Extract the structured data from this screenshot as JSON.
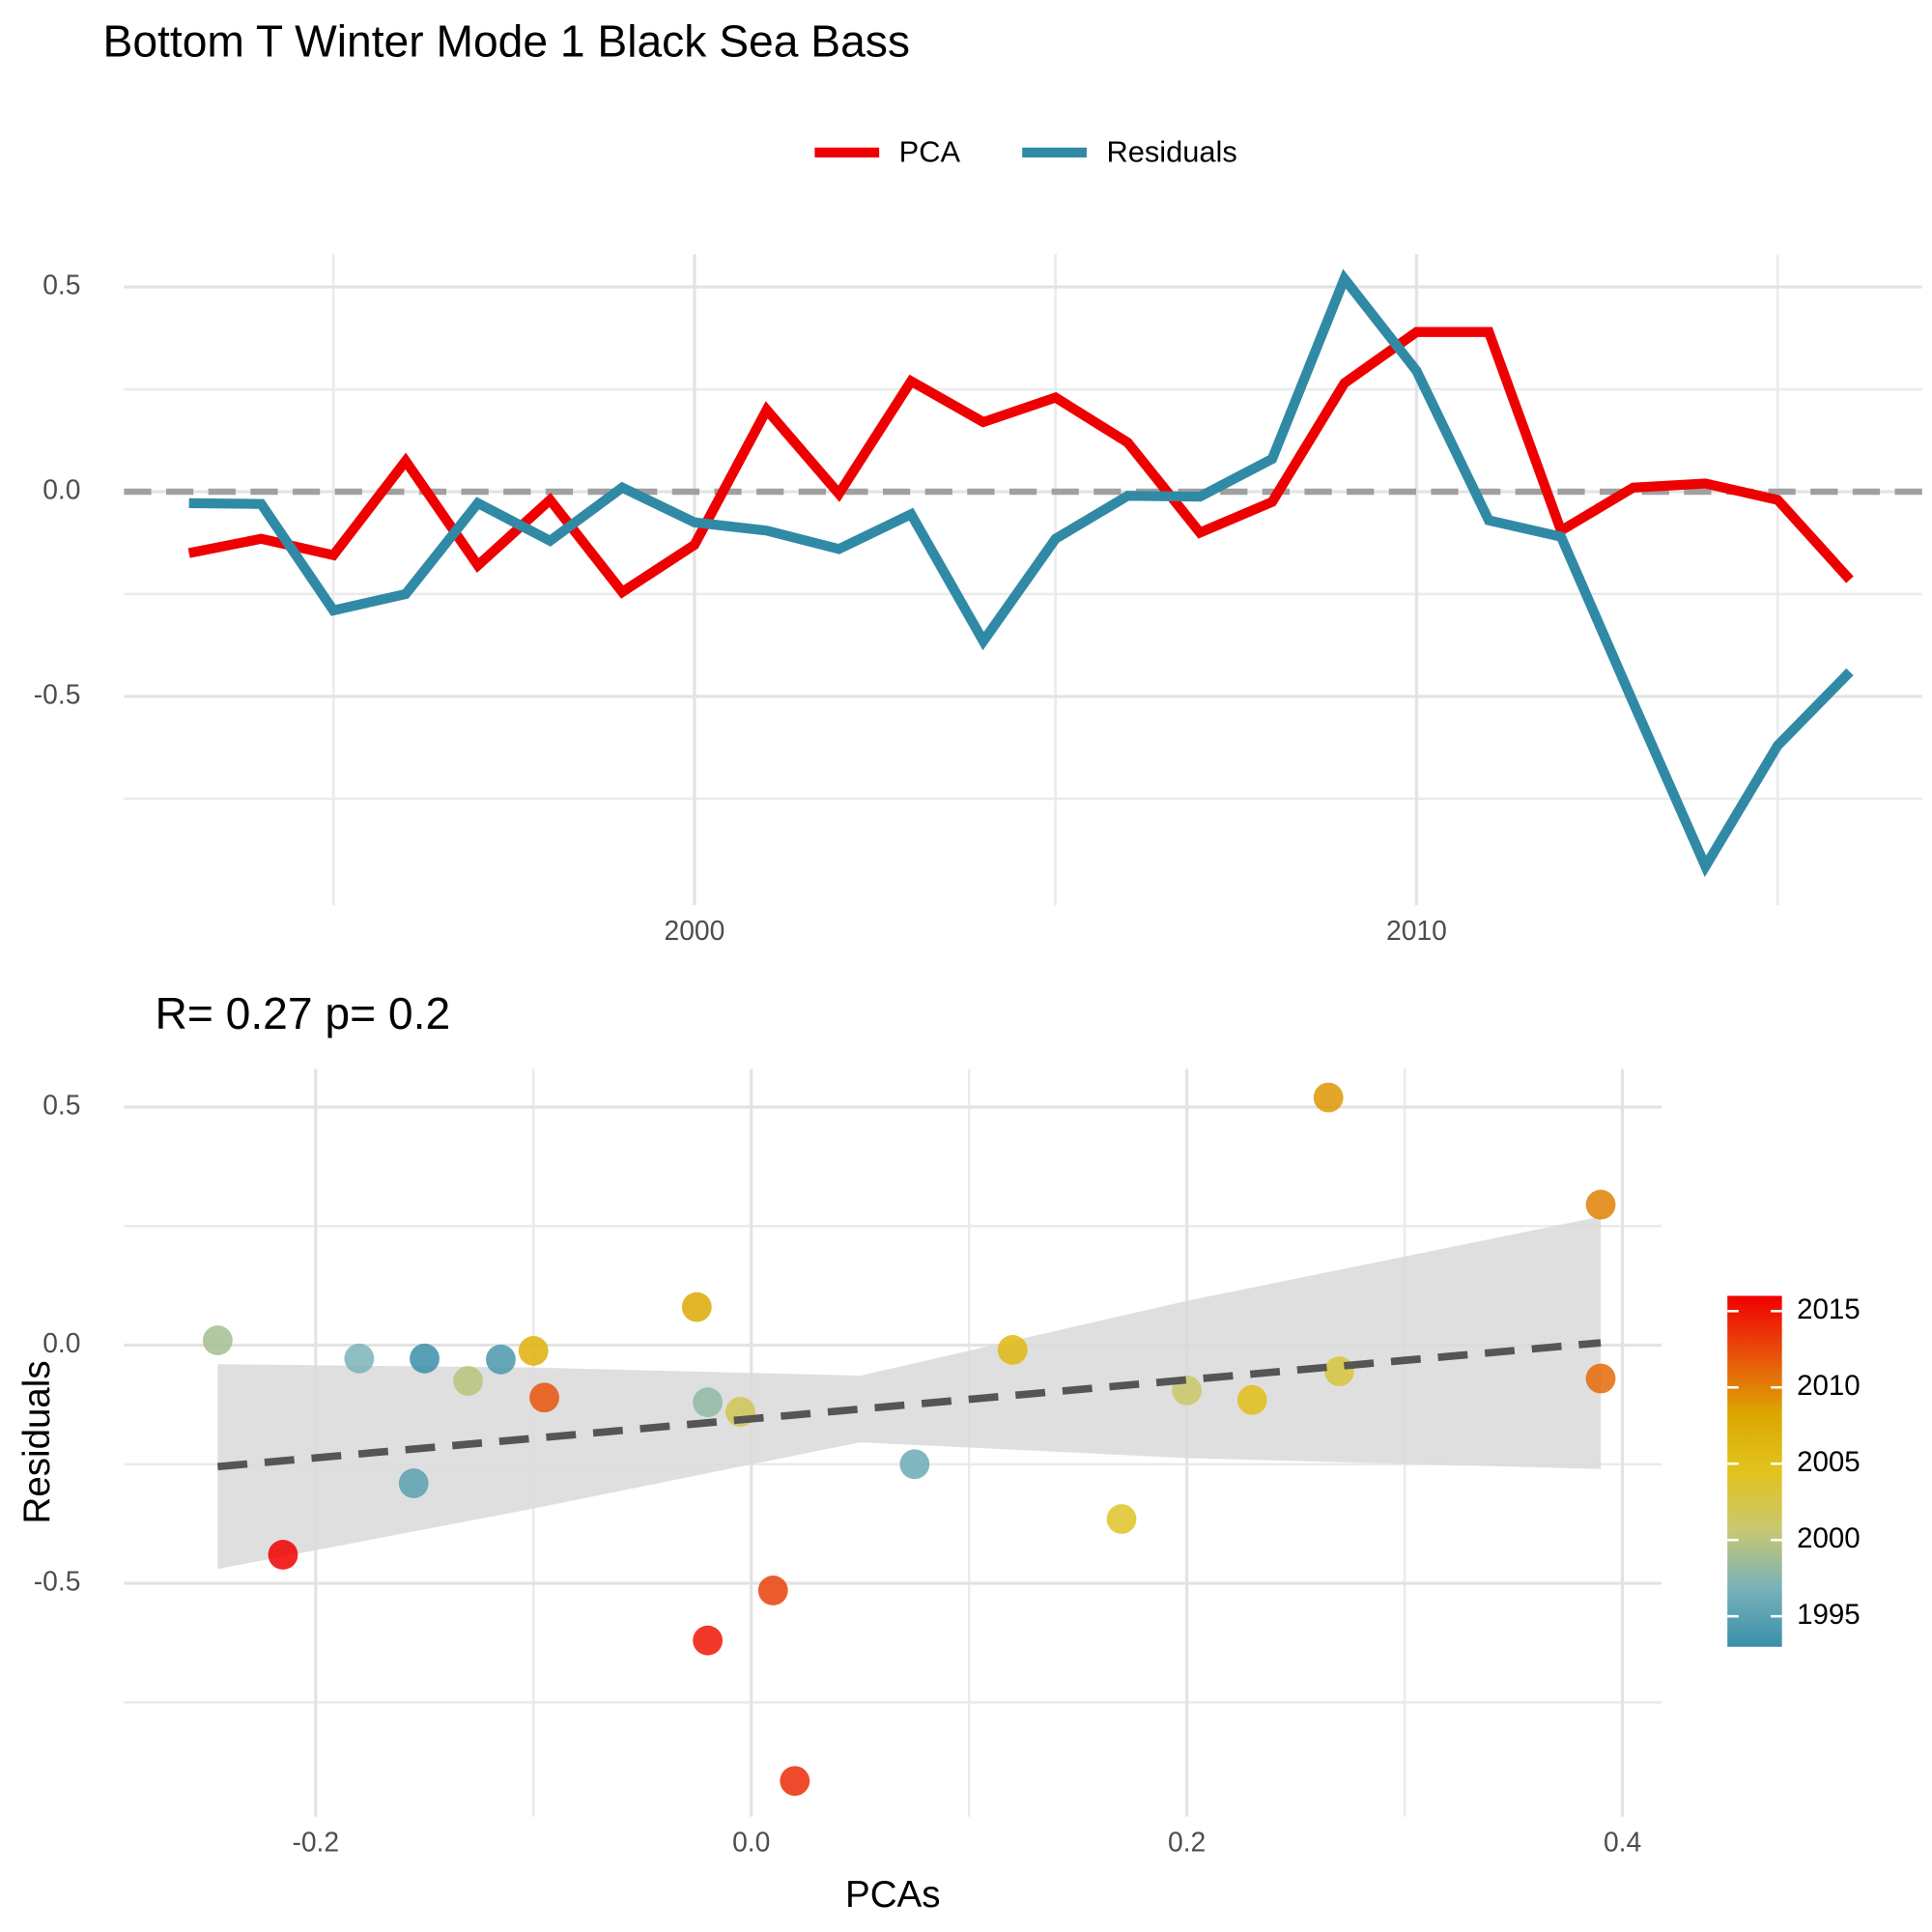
{
  "chart_data": [
    {
      "type": "line",
      "title": "Bottom T Winter Mode 1 Black Sea Bass",
      "x": [
        1993,
        1994,
        1995,
        1996,
        1997,
        1998,
        1999,
        2000,
        2001,
        2002,
        2003,
        2004,
        2005,
        2006,
        2007,
        2008,
        2009,
        2010,
        2011,
        2012,
        2013,
        2014,
        2015,
        2016
      ],
      "series": [
        {
          "name": "PCA",
          "color": "#ee0000",
          "values": [
            -0.15,
            -0.115,
            -0.155,
            0.075,
            -0.18,
            -0.02,
            -0.245,
            -0.13,
            0.2,
            -0.005,
            0.27,
            0.17,
            0.23,
            0.12,
            -0.1,
            -0.025,
            0.265,
            0.39,
            0.39,
            -0.095,
            0.01,
            0.02,
            -0.02,
            -0.215
          ]
        },
        {
          "name": "Residuals",
          "color": "#318aa5",
          "values": [
            -0.028,
            -0.03,
            -0.29,
            -0.25,
            -0.028,
            -0.12,
            0.01,
            -0.075,
            -0.095,
            -0.14,
            -0.055,
            -0.365,
            -0.115,
            -0.01,
            -0.012,
            0.08,
            0.52,
            0.295,
            -0.07,
            -0.11,
            -0.515,
            -0.915,
            -0.62,
            -0.44
          ]
        }
      ],
      "xlim": [
        1992.1,
        2017
      ],
      "ylim": [
        -1.01,
        0.58
      ],
      "xticks": [
        2000,
        2010
      ],
      "yticks": [
        0.5,
        {
          "value": 0,
          "label": "0.0"
        },
        -0.5
      ],
      "reference_line": 0,
      "grid": true,
      "legend": "top"
    },
    {
      "type": "scatter",
      "subtitle": "R= 0.27  p= 0.2",
      "x_label": "PCAs",
      "y_label": "Residuals",
      "x": [
        -0.15,
        -0.115,
        -0.155,
        0.075,
        -0.18,
        -0.02,
        -0.245,
        -0.13,
        0.2,
        -0.005,
        0.27,
        0.17,
        0.23,
        0.12,
        -0.1,
        -0.025,
        0.265,
        0.39,
        0.39,
        -0.095,
        0.01,
        0.02,
        -0.02,
        -0.215
      ],
      "y": [
        -0.028,
        -0.03,
        -0.29,
        -0.25,
        -0.028,
        -0.12,
        0.01,
        -0.075,
        -0.095,
        -0.14,
        -0.055,
        -0.365,
        -0.115,
        -0.01,
        -0.012,
        0.08,
        0.52,
        0.295,
        -0.07,
        -0.11,
        -0.515,
        -0.915,
        -0.62,
        -0.44
      ],
      "color_values": [
        1993,
        1994,
        1995,
        1996,
        1997,
        1998,
        1999,
        2000,
        2001,
        2002,
        2003,
        2004,
        2005,
        2006,
        2007,
        2008,
        2009,
        2010,
        2011,
        2012,
        2013,
        2014,
        2015,
        2016
      ],
      "color_scale": {
        "lim": [
          1993,
          2016
        ],
        "ticks": [
          1995,
          2000,
          2005,
          2010,
          2015
        ],
        "colors": [
          "#3a8fa8",
          "#78b2bb",
          "#c8c870",
          "#e1c31d",
          "#dca600",
          "#e8500c",
          "#f10000"
        ]
      },
      "fit": {
        "x": [
          -0.245,
          0.39
        ],
        "y": [
          -0.255,
          0.005
        ],
        "color": "#555555"
      },
      "ribbon": {
        "x": [
          -0.245,
          -0.1,
          0.05,
          0.2,
          0.39
        ],
        "lower": [
          -0.47,
          -0.343,
          -0.204,
          -0.237,
          -0.26
        ],
        "upper": [
          -0.04,
          -0.047,
          -0.064,
          0.093,
          0.27
        ],
        "color": "#d9d9d9"
      },
      "xlim": [
        -0.288,
        0.418
      ],
      "ylim": [
        -0.99,
        0.58
      ],
      "xticks": [
        -0.2,
        {
          "value": 0,
          "label": "0.0"
        },
        0.2,
        0.4
      ],
      "yticks": [
        0.5,
        {
          "value": 0,
          "label": "0.0"
        },
        -0.5
      ],
      "grid": true
    }
  ]
}
